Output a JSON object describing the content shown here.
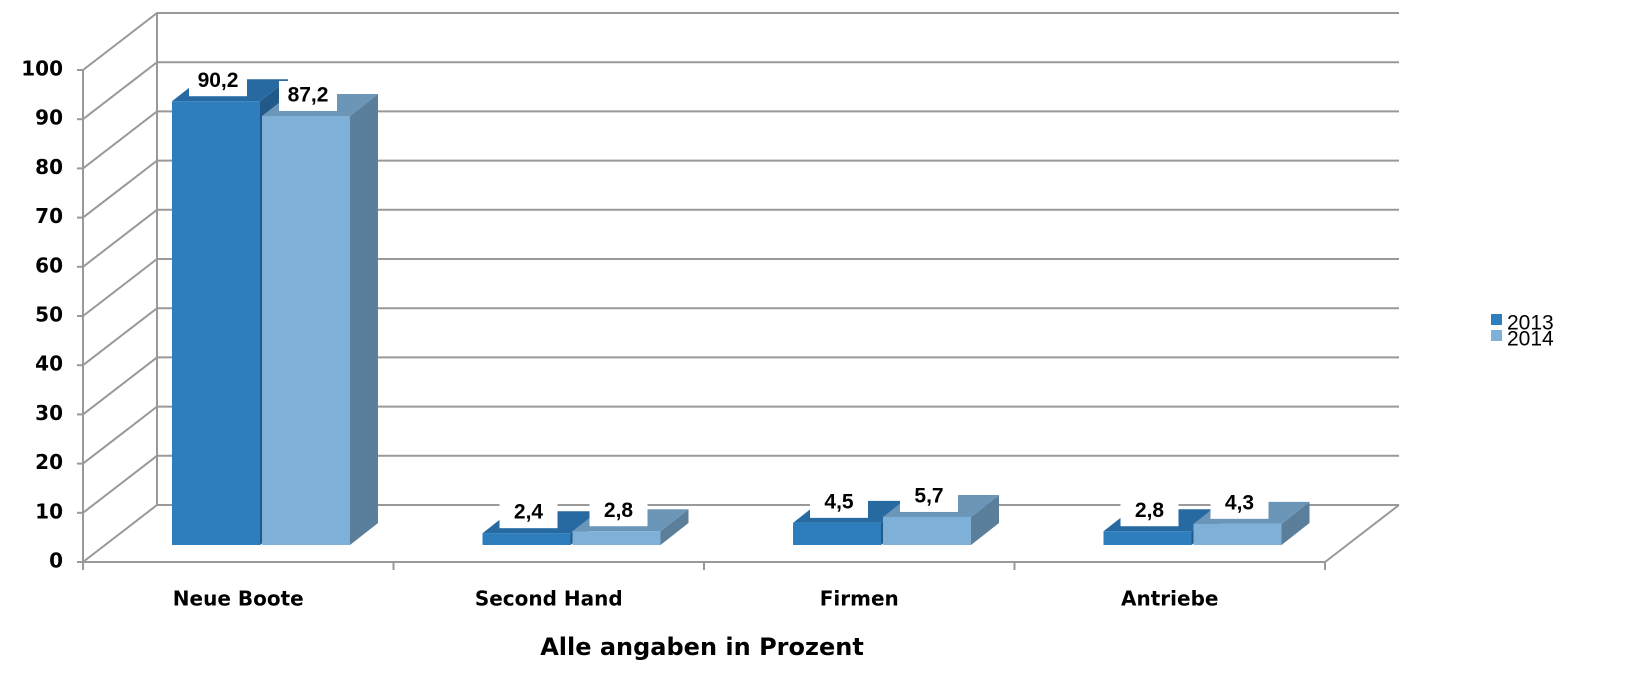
{
  "chart_data": {
    "type": "bar3d",
    "xlabel": "Alle angaben in Prozent",
    "categories": [
      "Neue Boote",
      "Second Hand",
      "Firmen",
      "Antriebe"
    ],
    "series": [
      {
        "name": "2013",
        "color": "#2e7dbd",
        "values": [
          90.2,
          2.4,
          4.5,
          2.8
        ],
        "value_labels": [
          "90,2",
          "2,4",
          "4,5",
          "2,8"
        ]
      },
      {
        "name": "2014",
        "color": "#7fb0d7",
        "values": [
          87.2,
          2.8,
          5.7,
          4.3
        ],
        "value_labels": [
          "87,2",
          "2,8",
          "5,7",
          "4,3"
        ]
      }
    ],
    "ylim": [
      0,
      100
    ],
    "yticks": [
      0,
      10,
      20,
      30,
      40,
      50,
      60,
      70,
      80,
      90,
      100
    ],
    "grid": true,
    "legend": "right"
  }
}
